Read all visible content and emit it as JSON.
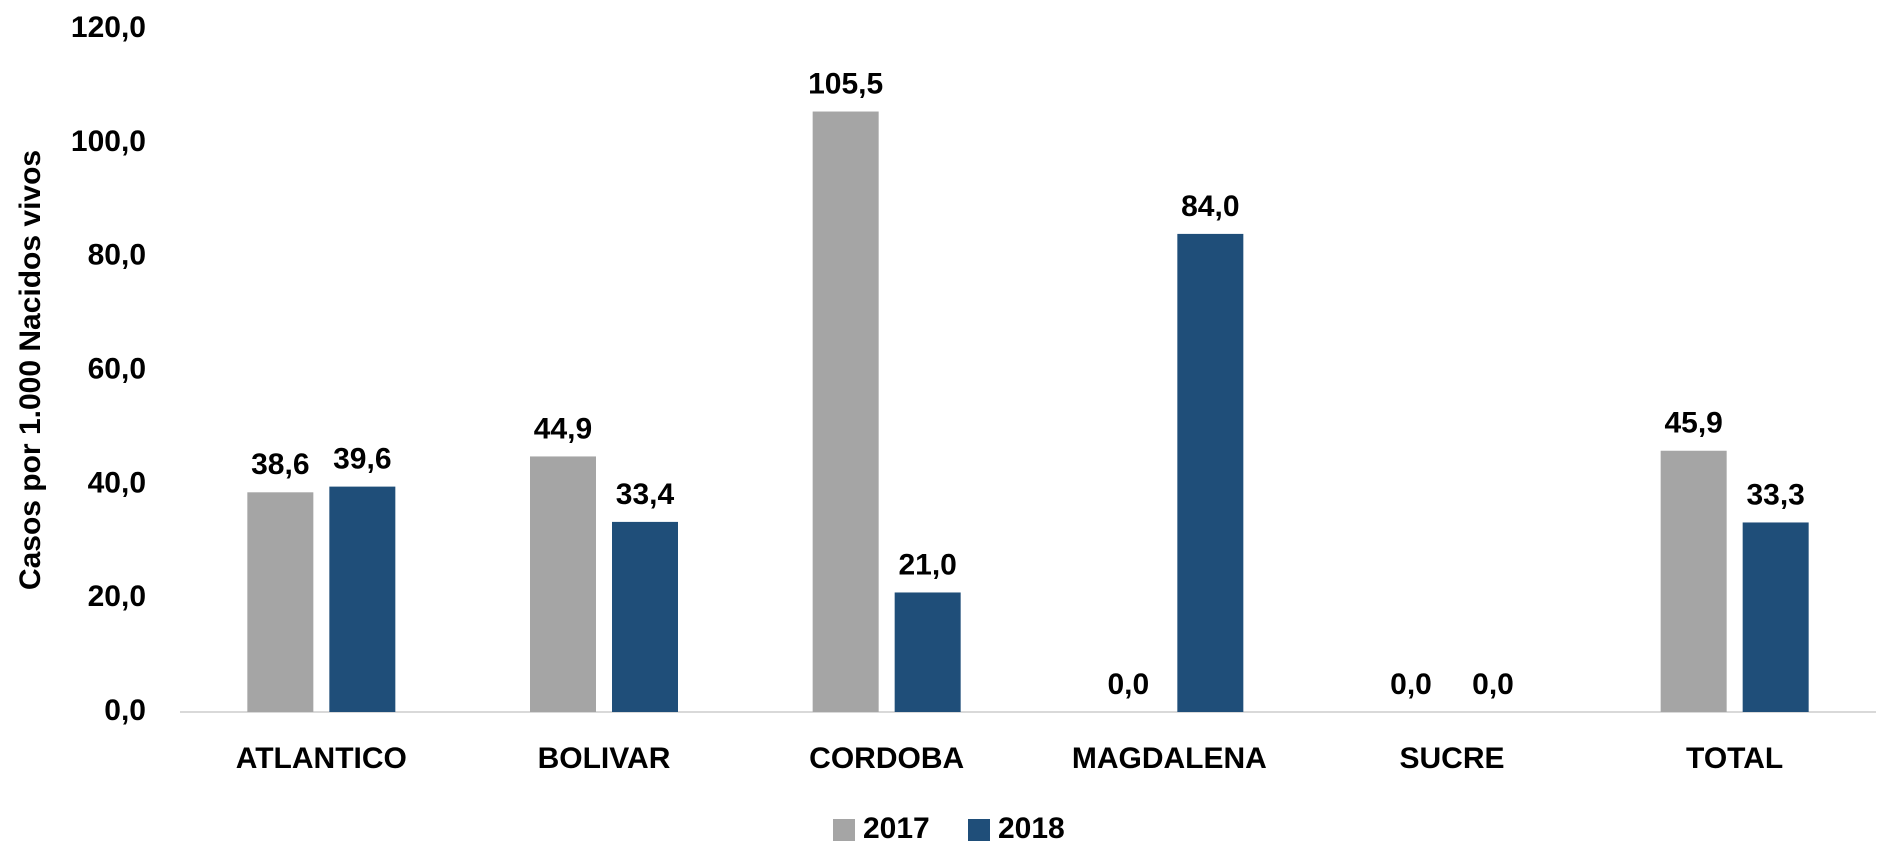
{
  "chart_data": {
    "type": "bar",
    "y_label": "Casos por 1.000 Nacidos vivos",
    "categories": [
      "ATLANTICO",
      "BOLIVAR",
      "CORDOBA",
      "MAGDALENA",
      "SUCRE",
      "TOTAL"
    ],
    "series": [
      {
        "name": "2017",
        "color": "#a5a5a5",
        "values": [
          38.6,
          44.9,
          105.5,
          0,
          0,
          45.9
        ],
        "value_labels": [
          "38,6",
          "44,9",
          "105,5",
          "0,0",
          "0,0",
          "45,9"
        ]
      },
      {
        "name": "2018",
        "color": "#1f4e79",
        "values": [
          39.6,
          33.4,
          21.0,
          84.0,
          0,
          33.3
        ],
        "value_labels": [
          "39,6",
          "33,4",
          "21,0",
          "84,0",
          "0,0",
          "33,3"
        ]
      }
    ],
    "ylim": [
      0,
      120
    ],
    "yticks": [
      {
        "value": 0,
        "label": "0,0"
      },
      {
        "value": 20,
        "label": "20,0"
      },
      {
        "value": 40,
        "label": "40,0"
      },
      {
        "value": 60,
        "label": "60,0"
      },
      {
        "value": 80,
        "label": "80,0"
      },
      {
        "value": 100,
        "label": "100,0"
      },
      {
        "value": 120,
        "label": "120,0"
      }
    ],
    "legend": "bottom"
  }
}
